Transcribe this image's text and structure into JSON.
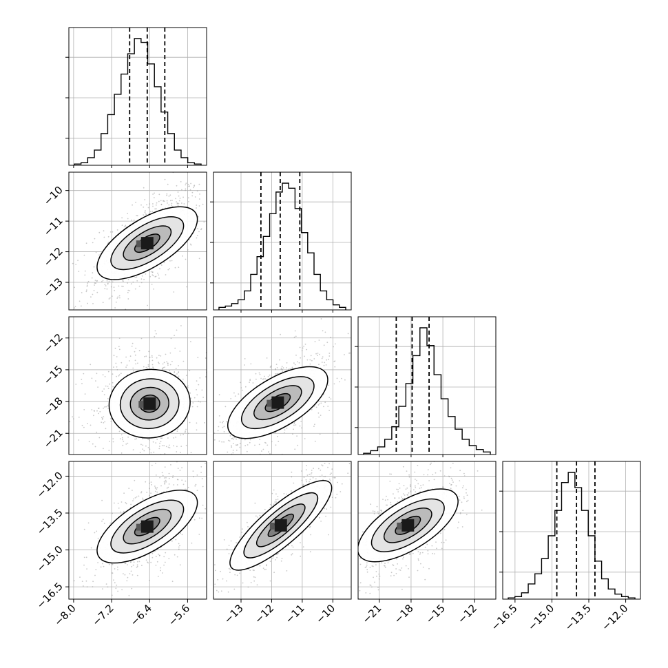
{
  "chart_data": {
    "type": "corner",
    "grid": true,
    "quantile_lines": "dashed",
    "parameters": [
      {
        "index": 0,
        "range": [
          -8.1,
          -5.2
        ],
        "median": -6.45,
        "q16": -6.82,
        "q84": -6.08,
        "ticks": [
          -8.0,
          -7.2,
          -6.4,
          -5.6
        ],
        "tick_labels": [
          "−8.0",
          "−7.2",
          "−6.4",
          "−5.6"
        ],
        "hist": [
          0.01,
          0.02,
          0.06,
          0.12,
          0.25,
          0.4,
          0.56,
          0.72,
          0.88,
          1.0,
          0.97,
          0.8,
          0.62,
          0.42,
          0.25,
          0.12,
          0.06,
          0.02,
          0.01
        ]
      },
      {
        "index": 1,
        "range": [
          -13.9,
          -9.4
        ],
        "median": -11.72,
        "q16": -12.35,
        "q84": -11.08,
        "ticks": [
          -13,
          -12,
          -11,
          -10
        ],
        "tick_labels": [
          "−13",
          "−12",
          "−11",
          "−10"
        ],
        "hist": [
          0.02,
          0.03,
          0.05,
          0.08,
          0.15,
          0.28,
          0.42,
          0.58,
          0.76,
          0.93,
          1.0,
          0.96,
          0.8,
          0.61,
          0.45,
          0.28,
          0.15,
          0.08,
          0.04,
          0.02
        ]
      },
      {
        "index": 2,
        "range": [
          -23,
          -10
        ],
        "median": -17.9,
        "q16": -19.4,
        "q84": -16.3,
        "ticks": [
          -21,
          -18,
          -15,
          -12
        ],
        "tick_labels": [
          "−21",
          "−18",
          "−15",
          "−12"
        ],
        "hist": [
          0.01,
          0.03,
          0.06,
          0.12,
          0.22,
          0.38,
          0.56,
          0.78,
          1.0,
          0.86,
          0.63,
          0.44,
          0.3,
          0.2,
          0.12,
          0.07,
          0.04,
          0.02
        ]
      },
      {
        "index": 3,
        "range": [
          -17.0,
          -11.4
        ],
        "median": -14.0,
        "q16": -14.8,
        "q84": -13.25,
        "ticks": [
          -16.5,
          -15.0,
          -13.5,
          -12.0
        ],
        "tick_labels": [
          "−16.5",
          "−15.0",
          "−13.5",
          "−12.0"
        ],
        "hist": [
          0.01,
          0.02,
          0.05,
          0.12,
          0.2,
          0.32,
          0.5,
          0.7,
          0.92,
          1.0,
          0.88,
          0.7,
          0.5,
          0.3,
          0.16,
          0.08,
          0.04,
          0.02,
          0.01
        ]
      }
    ],
    "pairs": [
      {
        "row": 1,
        "col": 0,
        "mode": [
          -6.45,
          -11.72
        ],
        "corr": 0.62
      },
      {
        "row": 2,
        "col": 0,
        "mode": [
          -6.4,
          -18.2
        ],
        "corr": 0.12
      },
      {
        "row": 2,
        "col": 1,
        "mode": [
          -11.8,
          -18.1
        ],
        "corr": 0.6
      },
      {
        "row": 3,
        "col": 0,
        "mode": [
          -6.45,
          -14.05
        ],
        "corr": 0.62
      },
      {
        "row": 3,
        "col": 1,
        "mode": [
          -11.7,
          -14.0
        ],
        "corr": 0.86
      },
      {
        "row": 3,
        "col": 2,
        "mode": [
          -18.3,
          -14.0
        ],
        "corr": 0.62
      }
    ]
  }
}
